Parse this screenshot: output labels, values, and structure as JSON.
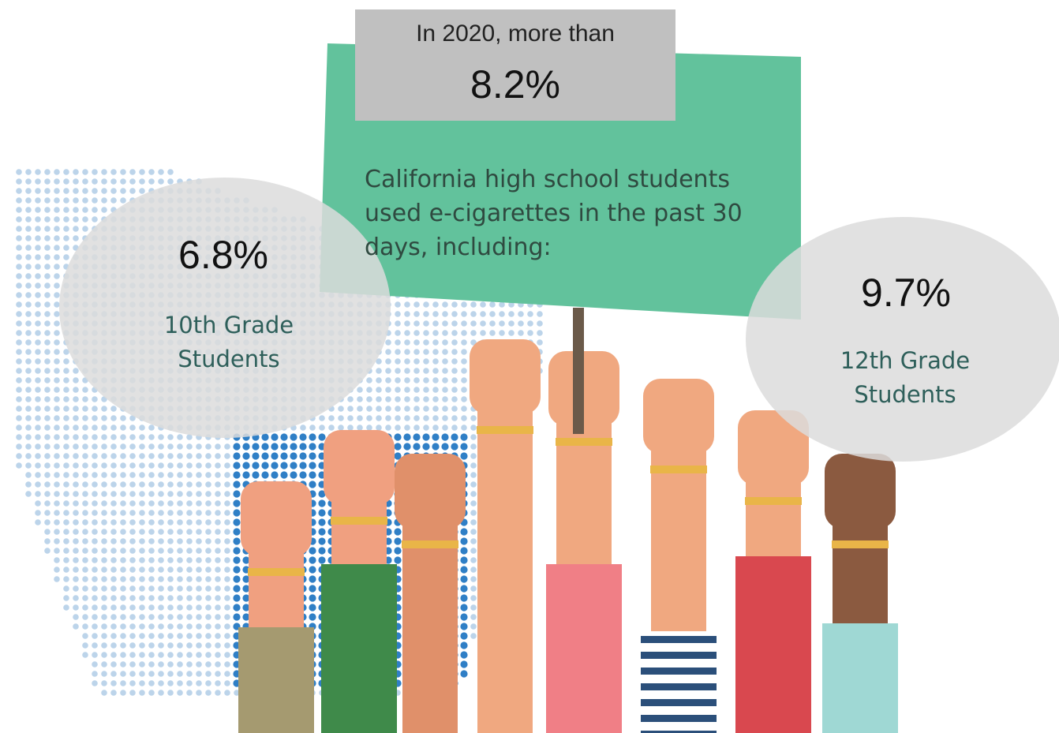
{
  "header": {
    "intro": "In 2020, more than",
    "value": "8.2%"
  },
  "sign": {
    "text": "California high school students used e-cigarettes in the past 30 days, including:"
  },
  "bubbles": [
    {
      "value": "6.8%",
      "label": "10th Grade Students"
    },
    {
      "value": "9.7%",
      "label": "12th Grade Students"
    }
  ]
}
